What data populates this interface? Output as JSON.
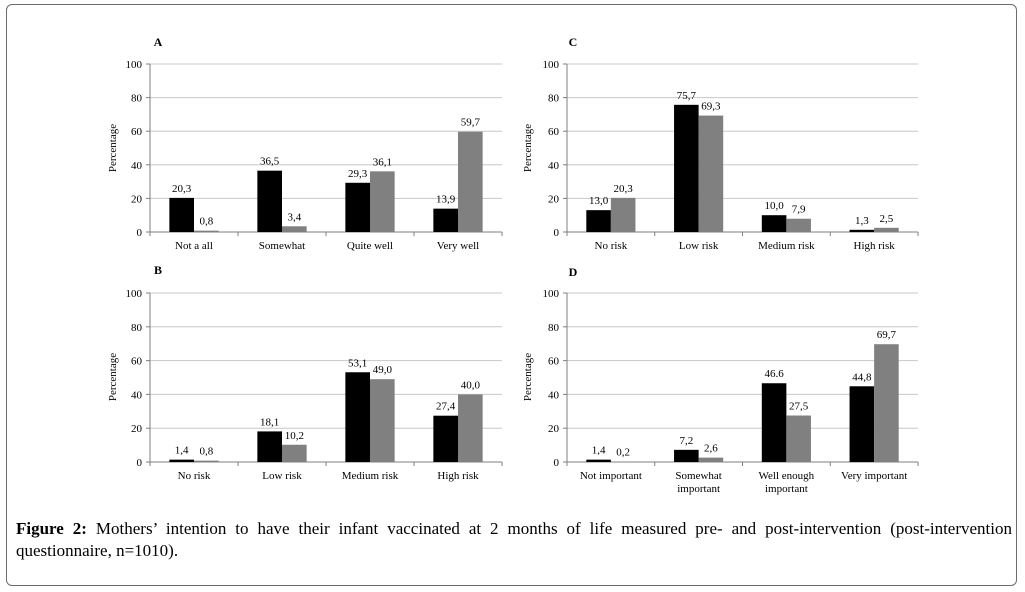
{
  "caption": {
    "label": "Figure 2:",
    "text": " Mothers’ intention to have their infant vaccinated at 2 months of life measured pre- and post-intervention (post-intervention questionnaire, n=1010)."
  },
  "colors": {
    "pre": "#000000",
    "post": "#808080",
    "axis": "#7f7f7f",
    "grid": "#c8c8c8"
  },
  "chart_data": [
    {
      "panel": "A",
      "type": "bar",
      "ylabel": "Percentage",
      "ylim": [
        0,
        100
      ],
      "yticks": [
        "0",
        "20",
        "40",
        "60",
        "80",
        "100"
      ],
      "categories": [
        [
          "Not a all"
        ],
        [
          "Somewhat"
        ],
        [
          "Quite well"
        ],
        [
          "Very well"
        ]
      ],
      "series": [
        {
          "values": [
            20.3,
            36.5,
            29.3,
            13.9
          ],
          "labels": [
            "20,3",
            "36,5",
            "29,3",
            "13,9"
          ]
        },
        {
          "values": [
            0.8,
            3.4,
            36.1,
            59.7
          ],
          "labels": [
            "0,8",
            "3,4",
            "36,1",
            "59,7"
          ]
        }
      ],
      "grid": true
    },
    {
      "panel": "C",
      "type": "bar",
      "ylabel": "Percentage",
      "ylim": [
        0,
        100
      ],
      "yticks": [
        "0",
        "20",
        "40",
        "60",
        "80",
        "100"
      ],
      "categories": [
        [
          "No risk"
        ],
        [
          "Low risk"
        ],
        [
          "Medium risk"
        ],
        [
          "High risk"
        ]
      ],
      "series": [
        {
          "values": [
            13.0,
            75.7,
            10.0,
            1.3
          ],
          "labels": [
            "13,0",
            "75,7",
            "10,0",
            "1,3"
          ]
        },
        {
          "values": [
            20.3,
            69.3,
            7.9,
            2.5
          ],
          "labels": [
            "20,3",
            "69,3",
            "7,9",
            "2,5"
          ]
        }
      ],
      "grid": true
    },
    {
      "panel": "B",
      "type": "bar",
      "ylabel": "Percentage",
      "ylim": [
        0,
        100
      ],
      "yticks": [
        "0",
        "20",
        "40",
        "60",
        "80",
        "100"
      ],
      "categories": [
        [
          "No risk"
        ],
        [
          "Low risk"
        ],
        [
          "Medium risk"
        ],
        [
          "High risk"
        ]
      ],
      "series": [
        {
          "values": [
            1.4,
            18.1,
            53.1,
            27.4
          ],
          "labels": [
            "1,4",
            "18,1",
            "53,1",
            "27,4"
          ]
        },
        {
          "values": [
            0.8,
            10.2,
            49.0,
            40.0
          ],
          "labels": [
            "0,8",
            "10,2",
            "49,0",
            "40,0"
          ]
        }
      ],
      "grid": true
    },
    {
      "panel": "D",
      "type": "bar",
      "ylabel": "Percentage",
      "ylim": [
        0,
        100
      ],
      "yticks": [
        "0",
        "20",
        "40",
        "60",
        "80",
        "100"
      ],
      "categories": [
        [
          "Not important"
        ],
        [
          "Somewhat",
          "important"
        ],
        [
          "Well enough",
          "important"
        ],
        [
          "Very important"
        ]
      ],
      "series": [
        {
          "values": [
            1.4,
            7.2,
            46.6,
            44.8
          ],
          "labels": [
            "1,4",
            "7,2",
            "46.6",
            "44,8"
          ]
        },
        {
          "values": [
            0.2,
            2.6,
            27.5,
            69.7
          ],
          "labels": [
            "0,2",
            "2,6",
            "27,5",
            "69,7"
          ]
        }
      ],
      "grid": true
    }
  ]
}
